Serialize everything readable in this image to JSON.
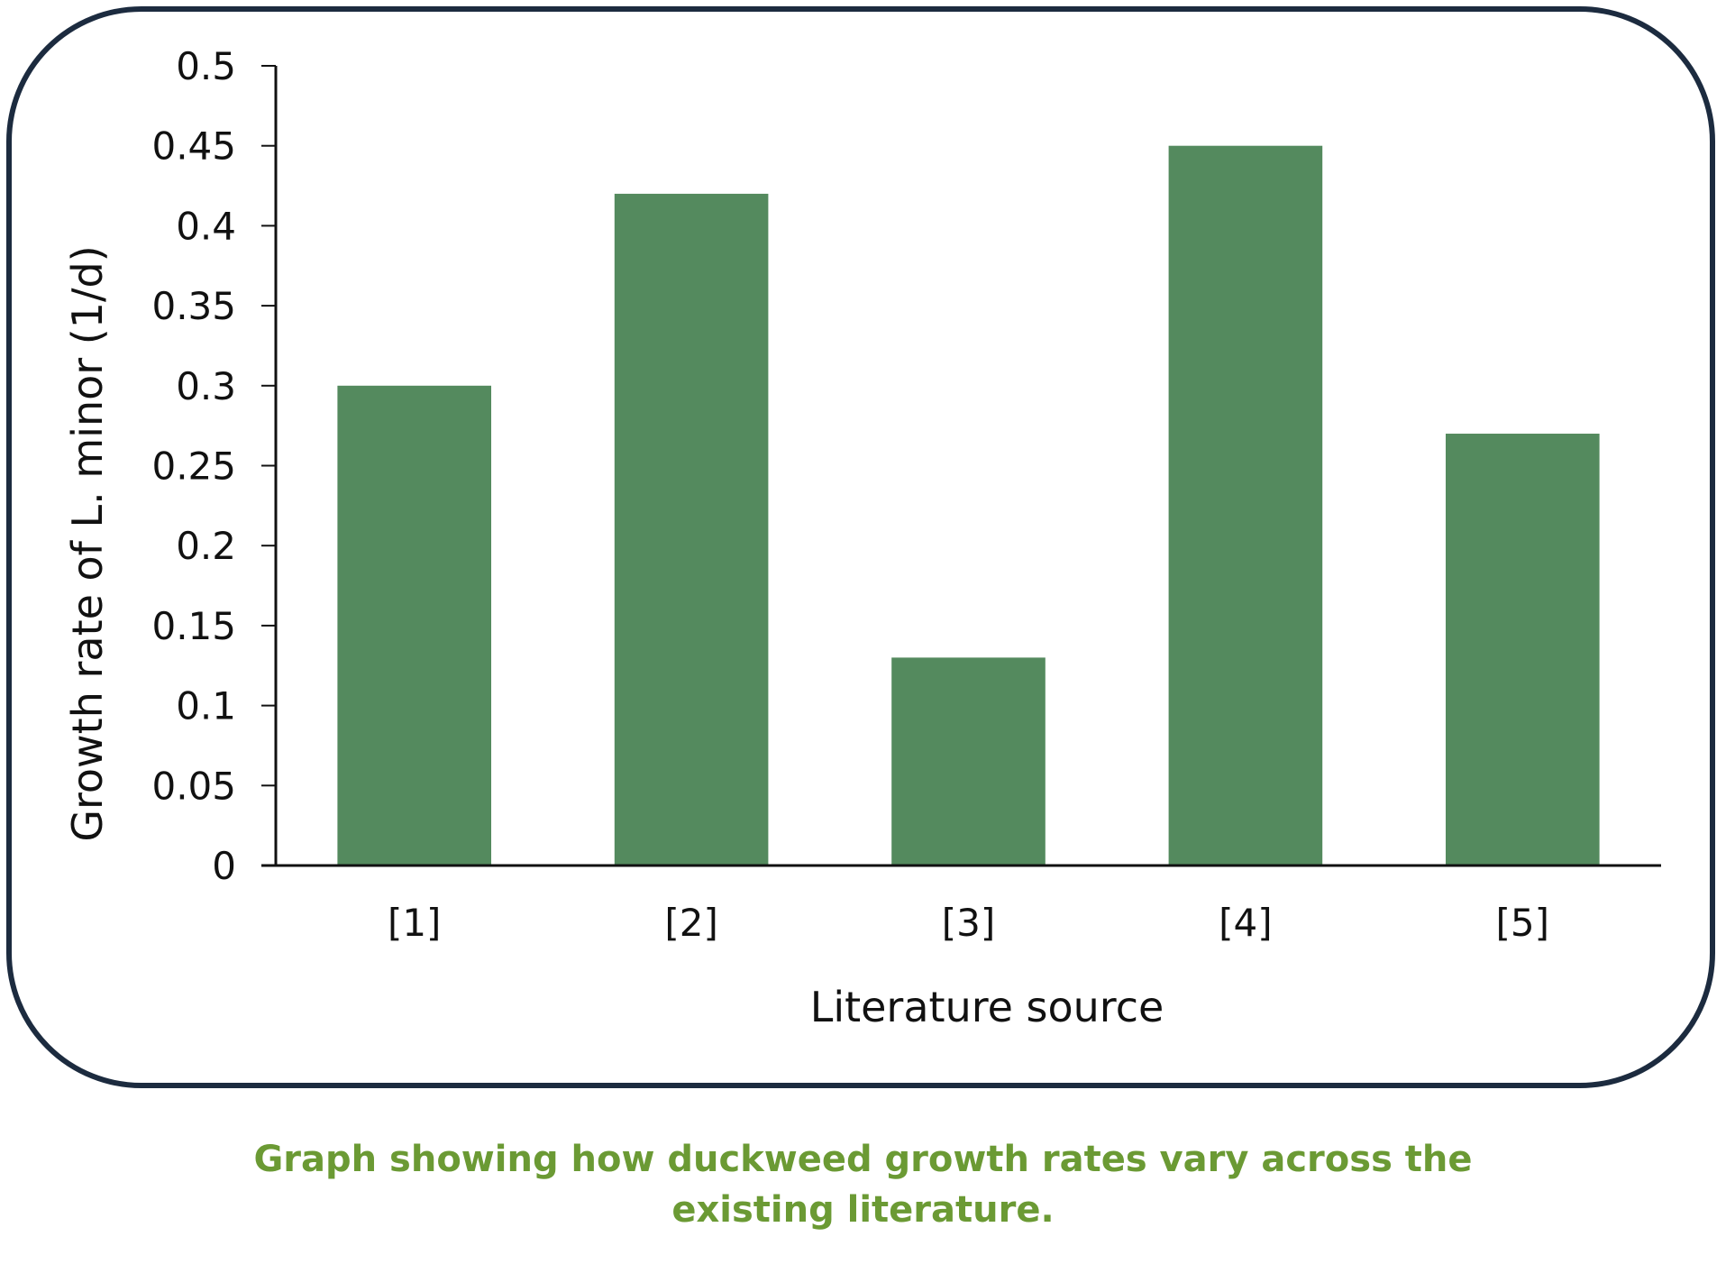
{
  "chart_data": {
    "type": "bar",
    "categories": [
      "[1]",
      "[2]",
      "[3]",
      "[4]",
      "[5]"
    ],
    "values": [
      0.3,
      0.42,
      0.13,
      0.45,
      0.27
    ],
    "xlabel": "Literature source",
    "ylabel": "Growth rate of L. minor (1/d)",
    "ylim": [
      0,
      0.5
    ],
    "yticks": [
      "0",
      "0.05",
      "0.1",
      "0.15",
      "0.2",
      "0.25",
      "0.3",
      "0.35",
      "0.4",
      "0.45",
      "0.5"
    ],
    "grid": false,
    "legend": "none",
    "bar_color": "#548a5e"
  },
  "caption": "Graph showing how duckweed growth rates vary across the existing literature.",
  "colors": {
    "frame": "#1c2b3f",
    "caption": "#6b9a34",
    "axis": "#111111"
  }
}
